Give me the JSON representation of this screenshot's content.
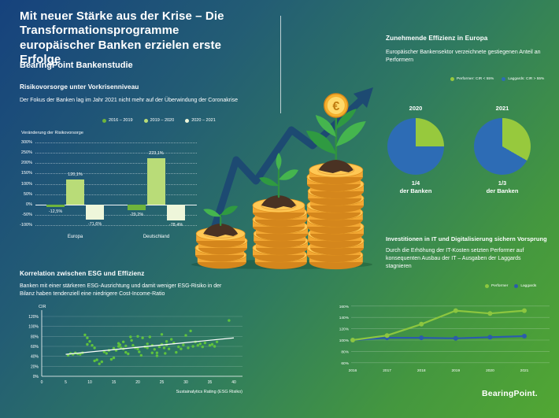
{
  "header": {
    "title": "Mit neuer Stärke aus der Krise – Die Transformationsprogramme europäischer Banken erzielen erste Erfolge",
    "subtitle": "BearingPoint Bankenstudie"
  },
  "risk_section": {
    "heading": "Risikovorsorge unter Vorkrisenniveau",
    "description": "Der Fokus der Banken lag im Jahr 2021 nicht mehr auf der Überwindung der Coronakrise"
  },
  "esg_section": {
    "heading": "Korrelation zwischen ESG und Effizienz",
    "description": "Banken mit einer stärkeren ESG-Ausrichtung und damit weniger ESG-Risiko in der Bilanz haben tendenziell eine niedrigere Cost-Income-Ratio"
  },
  "efficiency_section": {
    "heading": "Zunehmende Effizienz in Europa",
    "description": "Europäischer Bankensektor verzeichnete gestiegenen Anteil an Performern",
    "legend": [
      {
        "label": "Performer: CIR < 55%",
        "color": "#97c93d"
      },
      {
        "label": "Laggards: CIR > 55%",
        "color": "#2d6cb5"
      }
    ]
  },
  "it_section": {
    "heading": "Investitionen in IT und Digitalisierung sichern Vorsprung",
    "description": "Durch die Erhöhung der IT-Kosten setzten Performer auf konsequenten Ausbau der IT – Ausgaben der Laggards stagnieren",
    "legend": [
      {
        "label": "Performer",
        "color": "#8cc63f"
      },
      {
        "label": "Laggards",
        "color": "#2b5caa"
      }
    ]
  },
  "footer": {
    "logo": "BearingPoint."
  },
  "chart_data": [
    {
      "type": "bar",
      "title": "Risikovorsorge unter Vorkrisenniveau",
      "ylabel": "Veränderung der Risikovorsorge",
      "categories": [
        "Europa",
        "Deutschland"
      ],
      "series": [
        {
          "name": "2016 – 2019",
          "color": "#6fb43c",
          "values": [
            -12.5,
            -29.2
          ],
          "value_labels": [
            "-12,5%",
            "-29,2%"
          ]
        },
        {
          "name": "2019 – 2020",
          "color": "#b9dc78",
          "values": [
            120.1,
            223.1
          ],
          "value_labels": [
            "120,1%",
            "223,1%"
          ]
        },
        {
          "name": "2020 – 2021",
          "color": "#eef6da",
          "values": [
            -71.6,
            -78.4
          ],
          "value_labels": [
            "-71,6%",
            "-78,4%"
          ]
        }
      ],
      "ylim": [
        -100,
        300
      ],
      "yticks": [
        300,
        250,
        200,
        150,
        100,
        50,
        0,
        -50,
        -100
      ],
      "grid": true,
      "legend_position": "top"
    },
    {
      "type": "pie",
      "title": "Zunehmende Effizienz in Europa",
      "charts": [
        {
          "year": "2020",
          "slices": [
            {
              "name": "Performer: CIR < 55%",
              "value": 25,
              "color": "#97c93d"
            },
            {
              "name": "Laggards: CIR > 55%",
              "value": 75,
              "color": "#2d6cb5"
            }
          ],
          "caption_value": "1/4",
          "caption_text": "der Banken"
        },
        {
          "year": "2021",
          "slices": [
            {
              "name": "Performer: CIR < 55%",
              "value": 33.3,
              "color": "#97c93d"
            },
            {
              "name": "Laggards: CIR > 55%",
              "value": 66.7,
              "color": "#2d6cb5"
            }
          ],
          "caption_value": "1/3",
          "caption_text": "der Banken"
        }
      ]
    },
    {
      "type": "scatter",
      "title": "Korrelation zwischen ESG und Effizienz",
      "xlabel": "Sustainalytics Rating (ESG Risiko)",
      "ylabel": "CIR",
      "xlim": [
        0,
        40
      ],
      "ylim": [
        0,
        120
      ],
      "xticks": [
        0,
        5,
        10,
        15,
        20,
        25,
        30,
        35,
        40
      ],
      "yticks": [
        0,
        20,
        40,
        60,
        80,
        100,
        120
      ],
      "dot_color": "#5fc33d",
      "trendline": {
        "x1": 5,
        "y1": 44,
        "x2": 40,
        "y2": 77,
        "color": "#ffffff"
      },
      "points": [
        [
          5.5,
          42
        ],
        [
          6,
          46
        ],
        [
          6.5,
          44
        ],
        [
          7,
          47
        ],
        [
          7.5,
          45
        ],
        [
          8,
          44
        ],
        [
          8.5,
          47
        ],
        [
          9,
          83
        ],
        [
          9.5,
          77
        ],
        [
          9.5,
          64
        ],
        [
          10,
          70
        ],
        [
          10.5,
          62
        ],
        [
          11,
          57
        ],
        [
          11,
          31
        ],
        [
          11.5,
          33
        ],
        [
          12,
          25
        ],
        [
          12.5,
          29
        ],
        [
          13,
          49
        ],
        [
          13.5,
          46
        ],
        [
          14,
          52
        ],
        [
          14.5,
          34
        ],
        [
          15,
          37
        ],
        [
          15,
          56
        ],
        [
          15.5,
          52
        ],
        [
          16,
          60
        ],
        [
          16,
          66
        ],
        [
          16.3,
          63
        ],
        [
          16.5,
          57
        ],
        [
          17,
          69
        ],
        [
          17,
          55
        ],
        [
          17.5,
          61
        ],
        [
          17.5,
          48
        ],
        [
          18,
          45
        ],
        [
          18.5,
          79
        ],
        [
          18.7,
          72
        ],
        [
          19,
          62
        ],
        [
          19.5,
          57
        ],
        [
          20,
          80
        ],
        [
          20,
          55
        ],
        [
          20.3,
          49
        ],
        [
          20.7,
          42
        ],
        [
          21,
          77
        ],
        [
          21.5,
          59
        ],
        [
          22,
          65
        ],
        [
          22,
          57
        ],
        [
          22.5,
          79
        ],
        [
          23,
          62
        ],
        [
          23,
          47
        ],
        [
          23.5,
          54
        ],
        [
          24,
          47
        ],
        [
          24,
          41
        ],
        [
          24.5,
          59
        ],
        [
          25,
          84
        ],
        [
          25,
          64
        ],
        [
          25.5,
          57
        ],
        [
          25.7,
          46
        ],
        [
          26,
          63
        ],
        [
          26,
          70
        ],
        [
          26.5,
          55
        ],
        [
          27,
          74
        ],
        [
          27.5,
          67
        ],
        [
          28,
          48
        ],
        [
          28.5,
          59
        ],
        [
          29,
          55
        ],
        [
          29.5,
          63
        ],
        [
          30,
          82
        ],
        [
          30.5,
          57
        ],
        [
          31,
          91
        ],
        [
          31.5,
          60
        ],
        [
          32,
          69
        ],
        [
          32.5,
          62
        ],
        [
          33,
          65
        ],
        [
          33.5,
          59
        ],
        [
          34,
          67
        ],
        [
          35,
          62
        ],
        [
          35.5,
          64
        ],
        [
          36,
          60
        ],
        [
          36.5,
          69
        ],
        [
          39,
          112
        ]
      ]
    },
    {
      "type": "line",
      "title": "Investitionen in IT und Digitalisierung sichern Vorsprung",
      "x": [
        "2016",
        "2017",
        "2018",
        "2019",
        "2020",
        "2021"
      ],
      "series": [
        {
          "name": "Performer",
          "color": "#8cc63f",
          "values": [
            100,
            108,
            128,
            152,
            147,
            152
          ]
        },
        {
          "name": "Laggards",
          "color": "#2b5caa",
          "values": [
            100,
            104,
            104,
            103,
            105,
            107
          ]
        }
      ],
      "ylim": [
        60,
        160
      ],
      "yticks": [
        160,
        140,
        120,
        100,
        80,
        60
      ],
      "unit": "%",
      "grid": true,
      "legend_position": "top-right"
    }
  ]
}
